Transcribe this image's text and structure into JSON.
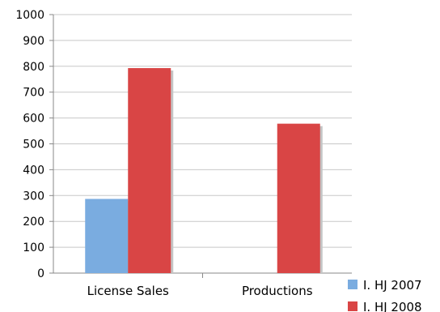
{
  "chart_data": {
    "type": "bar",
    "categories": [
      "License Sales",
      "Productions"
    ],
    "series": [
      {
        "name": "I. HJ 2007",
        "values": [
          287,
          0
        ],
        "color": "#7aace0"
      },
      {
        "name": "I. HJ 2008",
        "values": [
          793,
          578
        ],
        "color": "#d94545"
      }
    ],
    "ylim": [
      0,
      1000
    ],
    "yticks": [
      0,
      100,
      200,
      300,
      400,
      500,
      600,
      700,
      800,
      900,
      1000
    ],
    "grid": true,
    "legend_position": "bottom-right",
    "title": "",
    "xlabel": "",
    "ylabel": ""
  }
}
